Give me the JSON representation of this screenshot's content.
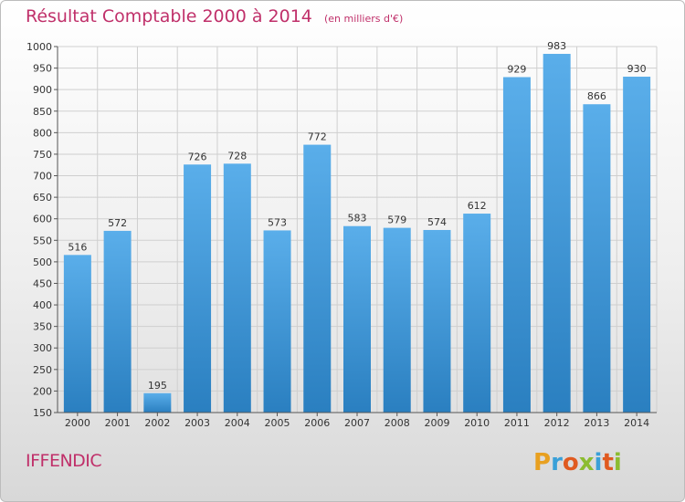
{
  "title": "Résultat Comptable 2000 à 2014",
  "subtitle": "(en milliers d'€)",
  "city": "IFFENDIC",
  "logo": "Proxiti",
  "colors": {
    "title": "#c0306a",
    "bar_top": "#5aaeea",
    "bar_bottom": "#2a7fc0",
    "grid": "#cfcfcf"
  },
  "chart_data": {
    "type": "bar",
    "categories": [
      "2000",
      "2001",
      "2002",
      "2003",
      "2004",
      "2005",
      "2006",
      "2007",
      "2008",
      "2009",
      "2010",
      "2011",
      "2012",
      "2013",
      "2014"
    ],
    "values": [
      516,
      572,
      195,
      726,
      728,
      573,
      772,
      583,
      579,
      574,
      612,
      929,
      983,
      866,
      930
    ],
    "ylim": [
      150,
      1000
    ],
    "yticks": [
      150,
      200,
      250,
      300,
      350,
      400,
      450,
      500,
      550,
      600,
      650,
      700,
      750,
      800,
      850,
      900,
      950,
      1000
    ],
    "grid": true,
    "xlabel": "",
    "ylabel": ""
  }
}
